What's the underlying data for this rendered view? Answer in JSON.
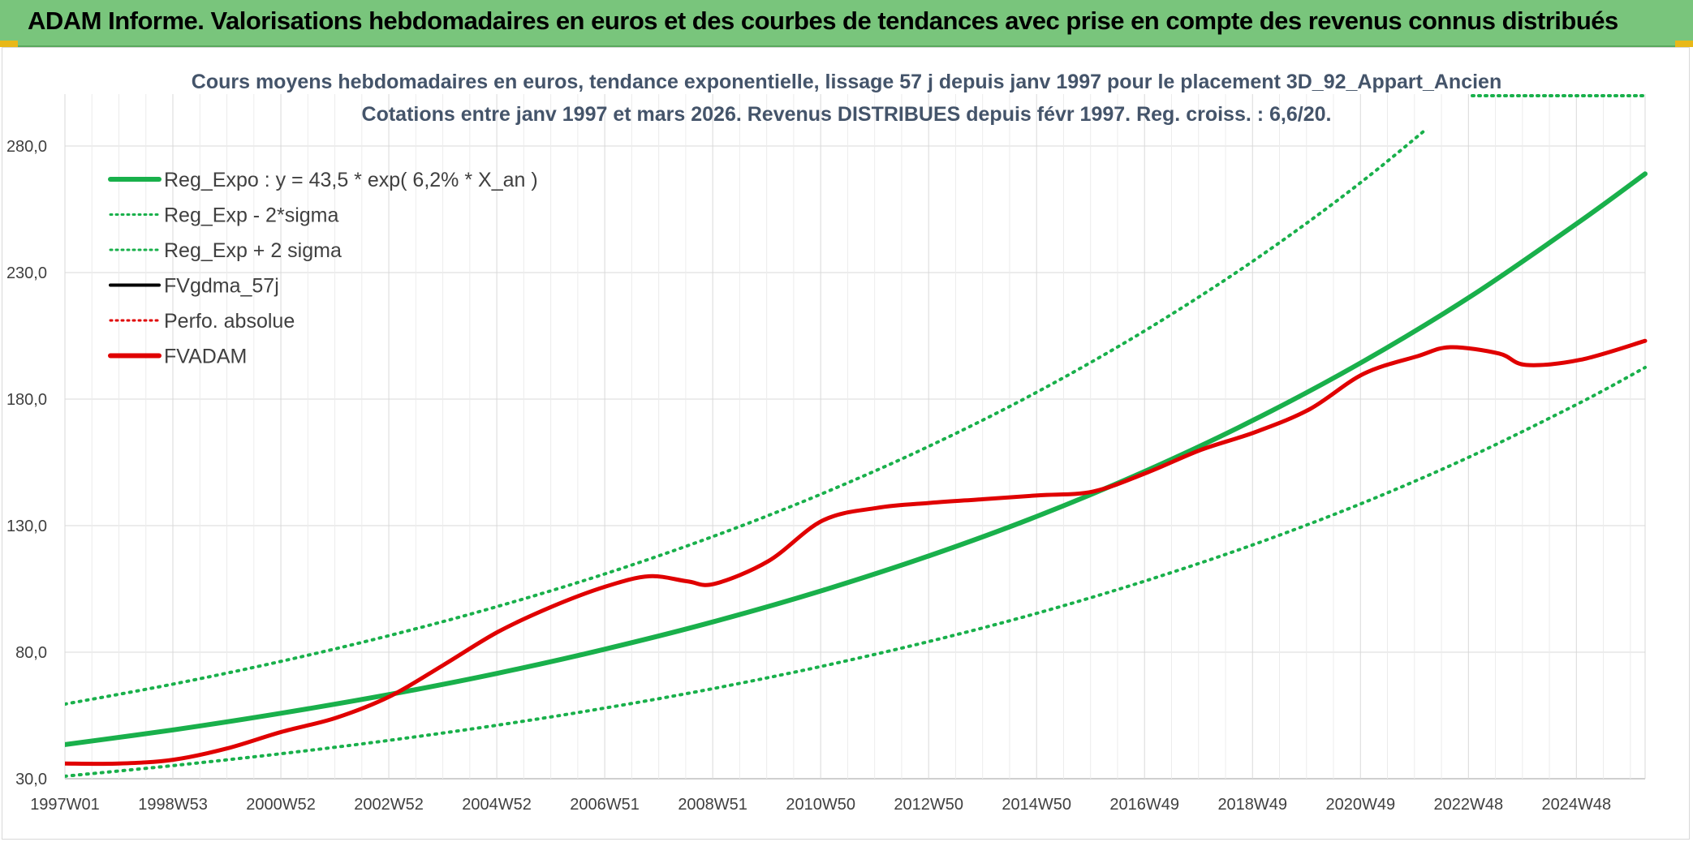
{
  "header": {
    "title": "ADAM Informe. Valorisations hebdomadaires en euros et des courbes de tendances avec prise en compte des revenus connus distribués"
  },
  "colors": {
    "banner": "#79c57c",
    "green": "#19b04b",
    "red": "#e00000",
    "black": "#000000",
    "grid": "#d9d9d9"
  },
  "chart_data": {
    "type": "line",
    "title": "Cours moyens hebdomadaires en euros, tendance exponentielle, lissage 57 j depuis janv 1997 pour le placement 3D_92_Appart_Ancien",
    "subtitle": "Cotations entre janv 1997 et mars 2026. Revenus DISTRIBUES depuis févr 1997. Reg. croiss. : 6,6/20.",
    "x_tick_labels": [
      "1997W01",
      "1998W53",
      "2000W52",
      "2002W52",
      "2004W52",
      "2006W51",
      "2008W51",
      "2010W50",
      "2012W50",
      "2014W50",
      "2016W49",
      "2018W49",
      "2020W49",
      "2022W48",
      "2024W48"
    ],
    "x_range": [
      1997.0,
      2026.2
    ],
    "y_tick_labels": [
      "30,0",
      "80,0",
      "130,0",
      "180,0",
      "230,0",
      "280,0"
    ],
    "ylim": [
      30,
      280
    ],
    "grid": true,
    "legend_position": "top-left",
    "legend": [
      {
        "label": "Reg_Expo : y = 43,5 * exp( 6,2% *  X_an )",
        "color": "#19b04b",
        "style": "solid-thick"
      },
      {
        "label": "Reg_Exp - 2*sigma",
        "color": "#19b04b",
        "style": "dotted"
      },
      {
        "label": "Reg_Exp + 2 sigma",
        "color": "#19b04b",
        "style": "dotted"
      },
      {
        "label": "FVgdma_57j",
        "color": "#000000",
        "style": "solid"
      },
      {
        "label": "Perfo. absolue",
        "color": "#e00000",
        "style": "dotted"
      },
      {
        "label": "FVADAM",
        "color": "#e00000",
        "style": "solid-thick"
      }
    ],
    "series": [
      {
        "name": "Reg_Expo : y = 43,5 * exp( 6,2% *  X_an )",
        "x": [
          1997.0,
          1999.0,
          2001.0,
          2003.0,
          2005.0,
          2007.0,
          2009.0,
          2011.0,
          2013.0,
          2015.0,
          2017.0,
          2019.0,
          2021.0,
          2023.0,
          2025.0,
          2026.2
        ],
        "y": [
          43.5,
          49.3,
          55.9,
          63.3,
          71.7,
          81.3,
          92.1,
          104.4,
          118.3,
          134.0,
          151.9,
          172.1,
          195.0,
          220.9,
          250.3,
          269.0
        ]
      },
      {
        "name": "Reg_Exp - 2*sigma",
        "x": [
          1997.0,
          1999.0,
          2001.0,
          2003.0,
          2005.0,
          2007.0,
          2009.0,
          2011.0,
          2013.0,
          2015.0,
          2017.0,
          2019.0,
          2021.0,
          2023.0,
          2025.0,
          2026.2
        ],
        "y": [
          31.0,
          35.2,
          39.9,
          45.2,
          51.2,
          58.0,
          65.7,
          74.5,
          84.4,
          95.6,
          108.4,
          122.8,
          139.1,
          157.6,
          178.6,
          192.5
        ]
      },
      {
        "name": "Reg_Exp + 2 sigma",
        "x": [
          1997.0,
          1999.0,
          2001.0,
          2003.0,
          2005.0,
          2007.0,
          2009.0,
          2011.0,
          2013.0,
          2015.0,
          2017.0,
          2019.0,
          2021.0,
          2023.0,
          2023.5
        ],
        "y": [
          59.5,
          67.4,
          76.4,
          86.6,
          98.1,
          111.1,
          125.9,
          142.7,
          161.7,
          183.2,
          207.6,
          235.2,
          266.5,
          301.9,
          311.5
        ]
      },
      {
        "name": "FVADAM",
        "x": [
          1997.0,
          1998.0,
          1999.0,
          2000.0,
          2001.0,
          2002.0,
          2003.0,
          2004.0,
          2005.0,
          2006.0,
          2007.0,
          2007.8,
          2008.5,
          2009.0,
          2010.0,
          2011.0,
          2012.0,
          2013.0,
          2014.0,
          2015.0,
          2016.0,
          2017.0,
          2018.0,
          2019.0,
          2020.0,
          2021.0,
          2022.0,
          2022.6,
          2023.5,
          2024.0,
          2025.0,
          2026.2
        ],
        "y": [
          36.0,
          36.0,
          37.5,
          42.0,
          48.5,
          54.0,
          62.5,
          75.0,
          88.0,
          98.0,
          106.0,
          110.0,
          108.0,
          107.0,
          116.0,
          132.0,
          137.0,
          139.0,
          140.5,
          142.0,
          143.5,
          151.0,
          160.0,
          167.0,
          176.0,
          190.0,
          197.0,
          200.5,
          198.0,
          193.5,
          195.5,
          203.0
        ]
      }
    ]
  }
}
